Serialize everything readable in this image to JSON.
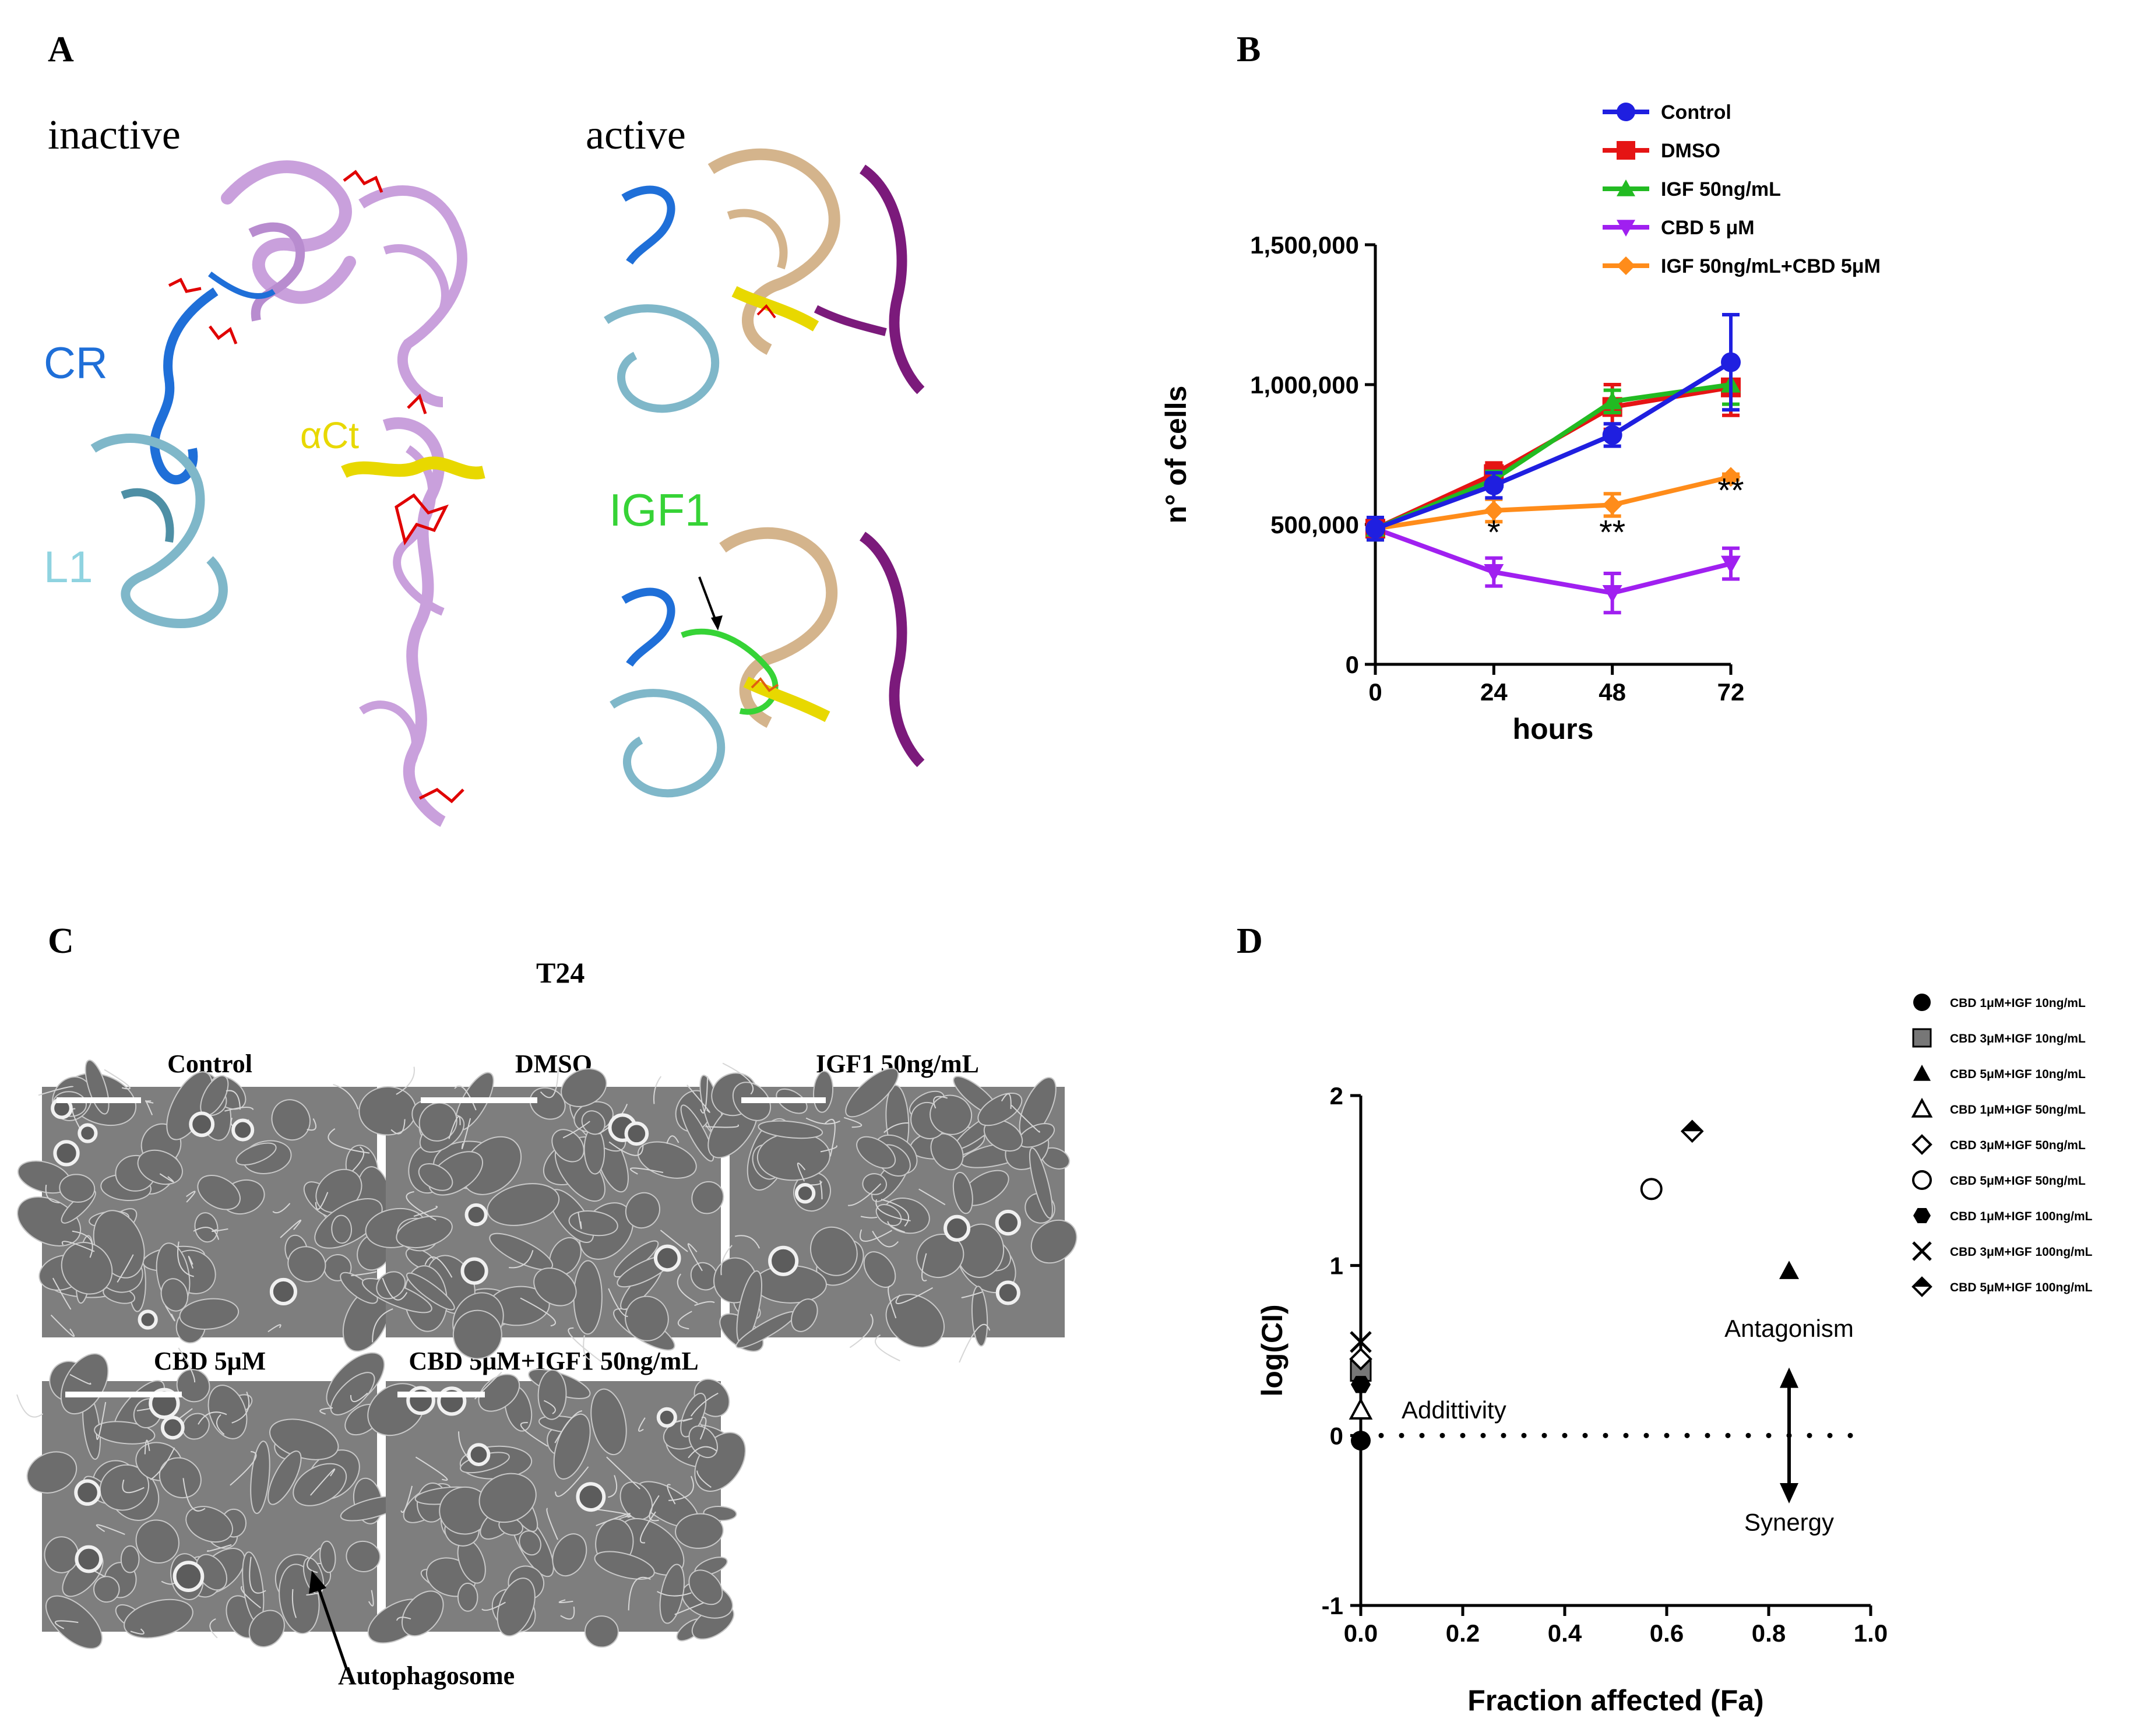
{
  "panel_letters": {
    "a": "A",
    "b": "B",
    "c": "C",
    "d": "D"
  },
  "panel_a": {
    "state_inactive": "inactive",
    "state_active": "active",
    "domains": {
      "cr": "CR",
      "l1": "L1",
      "act": "αCt",
      "igf1": "IGF1"
    },
    "colors": {
      "cr": "#1f6fd8",
      "l1": "#8fd3e0",
      "act": "#e8d800",
      "igf1": "#36d336",
      "ligand": "#e00000",
      "receptor": "#c9a0dc",
      "partner": "#d4b48c",
      "partner2": "#7b1a7b"
    }
  },
  "panel_b": {
    "chart_data": {
      "type": "line",
      "xlabel": "hours",
      "ylabel": "n° of cells",
      "x": [
        0,
        24,
        48,
        72
      ],
      "ylim": [
        0,
        1500000
      ],
      "yticks": [
        "0",
        "500,000",
        "1,000,000",
        "1,500,000"
      ],
      "xticks": [
        "0",
        "24",
        "48",
        "72"
      ],
      "series": [
        {
          "name": "Control",
          "color": "#1f1fe0",
          "marker": "circle",
          "values": [
            485000,
            640000,
            820000,
            1080000
          ],
          "err": [
            40000,
            45000,
            40000,
            170000
          ]
        },
        {
          "name": "DMSO",
          "color": "#e51414",
          "marker": "square",
          "values": [
            485000,
            680000,
            920000,
            990000
          ],
          "err": [
            40000,
            40000,
            80000,
            100000
          ]
        },
        {
          "name": "IGF 50ng/mL",
          "color": "#22bb22",
          "marker": "triangle",
          "values": [
            485000,
            660000,
            940000,
            1000000
          ],
          "err": [
            40000,
            30000,
            40000,
            70000
          ]
        },
        {
          "name": "CBD 5 μM",
          "color": "#a020f0",
          "marker": "triangle-down",
          "values": [
            485000,
            330000,
            255000,
            360000
          ],
          "err": [
            40000,
            50000,
            70000,
            55000
          ]
        },
        {
          "name": "IGF 50ng/mL+CBD 5μM",
          "color": "#ff8c1a",
          "marker": "diamond",
          "values": [
            485000,
            550000,
            570000,
            670000
          ],
          "err": [
            40000,
            40000,
            40000,
            10000
          ]
        }
      ],
      "annotations": [
        {
          "x": 24,
          "y": 430000,
          "text": "*"
        },
        {
          "x": 48,
          "y": 430000,
          "text": "**"
        },
        {
          "x": 72,
          "y": 580000,
          "text": "**"
        }
      ]
    }
  },
  "panel_c": {
    "title": "T24",
    "images": [
      {
        "label": "Control"
      },
      {
        "label": "DMSO"
      },
      {
        "label": "IGF1 50ng/mL"
      },
      {
        "label": "CBD 5μM"
      },
      {
        "label": "CBD 5μM+IGF1 50ng/mL"
      }
    ],
    "arrow_label": "Autophagosome"
  },
  "panel_d": {
    "chart_data": {
      "type": "scatter",
      "xlabel": "Fraction affected (Fa)",
      "ylabel": "log(CI)",
      "xlim": [
        0,
        1.0
      ],
      "ylim": [
        -1,
        2
      ],
      "xticks": [
        "0.0",
        "0.2",
        "0.4",
        "0.6",
        "0.8",
        "1.0"
      ],
      "yticks": [
        "-1",
        "0",
        "1",
        "2"
      ],
      "points": [
        {
          "name": "CBD 1μM+IGF 10ng/mL",
          "marker": "filled-circle",
          "x": 0.0,
          "y": -0.03
        },
        {
          "name": "CBD 3μM+IGF 10ng/mL",
          "marker": "gray-square",
          "x": 0.0,
          "y": 0.38
        },
        {
          "name": "CBD 5μM+IGF 10ng/mL",
          "marker": "filled-triangle",
          "x": 0.84,
          "y": 0.97
        },
        {
          "name": "CBD 1μM+IGF 50ng/mL",
          "marker": "open-triangle",
          "x": 0.0,
          "y": 0.15
        },
        {
          "name": "CBD 3μM+IGF 50ng/mL",
          "marker": "open-diamond",
          "x": 0.0,
          "y": 0.45
        },
        {
          "name": "CBD 5μM+IGF 50ng/mL",
          "marker": "open-circle",
          "x": 0.57,
          "y": 1.45
        },
        {
          "name": "CBD 1μM+IGF 100ng/mL",
          "marker": "filled-hexagon",
          "x": 0.0,
          "y": 0.3
        },
        {
          "name": "CBD 3μM+IGF 100ng/mL",
          "marker": "x",
          "x": 0.0,
          "y": 0.55
        },
        {
          "name": "CBD 5μM+IGF 100ng/mL",
          "marker": "half-diamond",
          "x": 0.65,
          "y": 1.79
        }
      ],
      "reference_line": {
        "y": 0,
        "style": "dotted"
      },
      "annotations": {
        "additivity": "Addittivity",
        "antagonism": "Antagonism",
        "synergy": "Synergy"
      }
    }
  }
}
